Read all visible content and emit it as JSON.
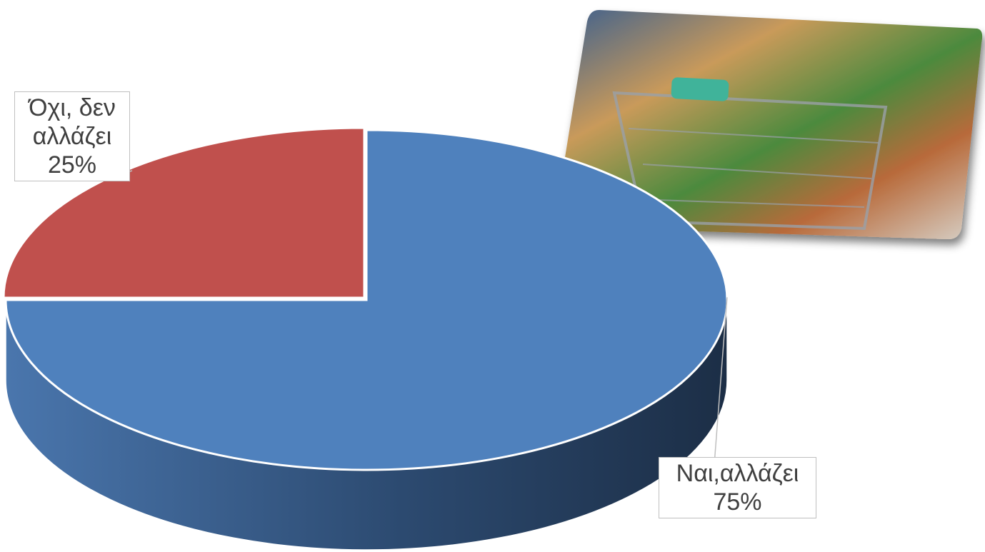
{
  "chart_data": {
    "type": "pie",
    "categories": [
      "Όχι, δεν αλλάζει",
      "Ναι,αλλάζει"
    ],
    "values": [
      25,
      75
    ],
    "value_labels": [
      "25%",
      "75%"
    ],
    "colors": [
      "#c0504d",
      "#4f81bd"
    ]
  }
}
